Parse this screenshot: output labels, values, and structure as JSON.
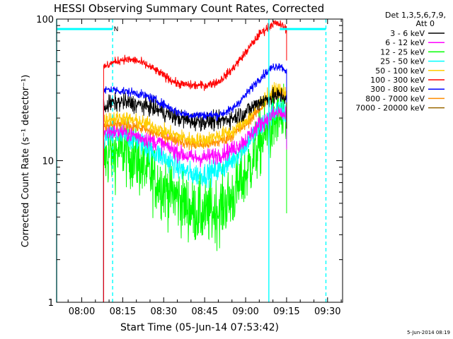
{
  "chart_data": {
    "type": "line",
    "title": "HESSI Observing Summary Count Rates, Corrected",
    "xlabel": "Start Time (05-Jun-14 07:53:42)",
    "ylabel": "Corrected Count Rate (s⁻¹ detector⁻¹)",
    "y_scale": "log",
    "ylim": [
      1,
      100
    ],
    "xlim_minutes": [
      -9.2,
      95.5
    ],
    "x_ticks": [
      {
        "label": "08:00",
        "min": 0
      },
      {
        "label": "08:15",
        "min": 15
      },
      {
        "label": "08:30",
        "min": 30
      },
      {
        "label": "08:45",
        "min": 45
      },
      {
        "label": "09:00",
        "min": 60
      },
      {
        "label": "09:15",
        "min": 75
      },
      {
        "label": "09:30",
        "min": 90
      }
    ],
    "y_ticks": [
      {
        "label": "1",
        "value": 1
      },
      {
        "label": "10",
        "value": 10
      },
      {
        "label": "100",
        "value": 100
      }
    ],
    "x_minutes": [
      8,
      10,
      15,
      20,
      25,
      30,
      35,
      40,
      45,
      50,
      55,
      60,
      65,
      70,
      72.5,
      75
    ],
    "legend_header": [
      "Det 1,3,5,6,7,9,",
      "Att 0"
    ],
    "series": [
      {
        "name": "3 - 6 keV",
        "color": "#000000",
        "noise": 0.06,
        "values": [
          24,
          25,
          26,
          25,
          24,
          22,
          20,
          19,
          19,
          19,
          20,
          22,
          26,
          28,
          29,
          28
        ]
      },
      {
        "name": "6 - 12 keV",
        "color": "#ff00ff",
        "noise": 0.06,
        "values": [
          16,
          16,
          16,
          15,
          14,
          13,
          11.5,
          10.5,
          10.5,
          11,
          12,
          14,
          18,
          21,
          22,
          20
        ]
      },
      {
        "name": "12 - 25 keV",
        "color": "#00ff00",
        "noise": 0.22,
        "values": [
          10,
          11,
          12,
          10,
          8,
          6.5,
          5.5,
          4.5,
          4.2,
          4.5,
          5.5,
          8,
          13,
          18,
          20,
          17
        ]
      },
      {
        "name": "25 - 50 keV",
        "color": "#00ffff",
        "noise": 0.08,
        "values": [
          14,
          15,
          15,
          14,
          12,
          10.5,
          9,
          8,
          8,
          8.5,
          10,
          13,
          17,
          22,
          23,
          21
        ]
      },
      {
        "name": "50 - 100 keV",
        "color": "#ffcc00",
        "noise": 0.05,
        "values": [
          19,
          20,
          20,
          19,
          18,
          16,
          15,
          14,
          14,
          15,
          16,
          19,
          25,
          31,
          32,
          30
        ]
      },
      {
        "name": "100 - 300 keV",
        "color": "#ff0000",
        "noise": 0.03,
        "values": [
          45,
          48,
          52,
          51,
          46,
          40,
          35,
          34,
          34,
          36,
          44,
          58,
          78,
          93,
          92,
          85
        ]
      },
      {
        "name": "300 - 800 keV",
        "color": "#0000ff",
        "noise": 0.03,
        "values": [
          31,
          32,
          31,
          30,
          28,
          25,
          22,
          21,
          21,
          21,
          23,
          29,
          38,
          46,
          47,
          43
        ]
      },
      {
        "name": "800 - 7000 keV",
        "color": "#ff8c00",
        "noise": 0.04,
        "values": [
          17,
          18,
          18,
          17.5,
          16,
          15,
          14,
          13,
          13,
          13.5,
          15,
          18,
          23,
          29,
          30,
          28
        ]
      },
      {
        "name": "7000 - 20000 keV",
        "color": "#996600",
        "noise": 0.0,
        "values": []
      }
    ],
    "markers": [
      {
        "type": "line",
        "color": "#00ffff",
        "minute": -9.2,
        "style": "solid"
      },
      {
        "type": "line",
        "color": "#00ffff",
        "minute": 11.3,
        "style": "dashed"
      },
      {
        "type": "line",
        "color": "#00ffff",
        "minute": 68.5,
        "style": "solid"
      },
      {
        "type": "line",
        "color": "#00ffff",
        "minute": 89.4,
        "style": "dashed"
      }
    ],
    "night_bars": [
      {
        "from": -9.0,
        "to": 11.3,
        "value": 85
      },
      {
        "from": 72.5,
        "to": 89.4,
        "value": 85
      }
    ],
    "annotations": [
      {
        "text": "N",
        "minute": 11.7,
        "value": 85
      }
    ],
    "footer": "5-Jun-2014 08:19"
  }
}
